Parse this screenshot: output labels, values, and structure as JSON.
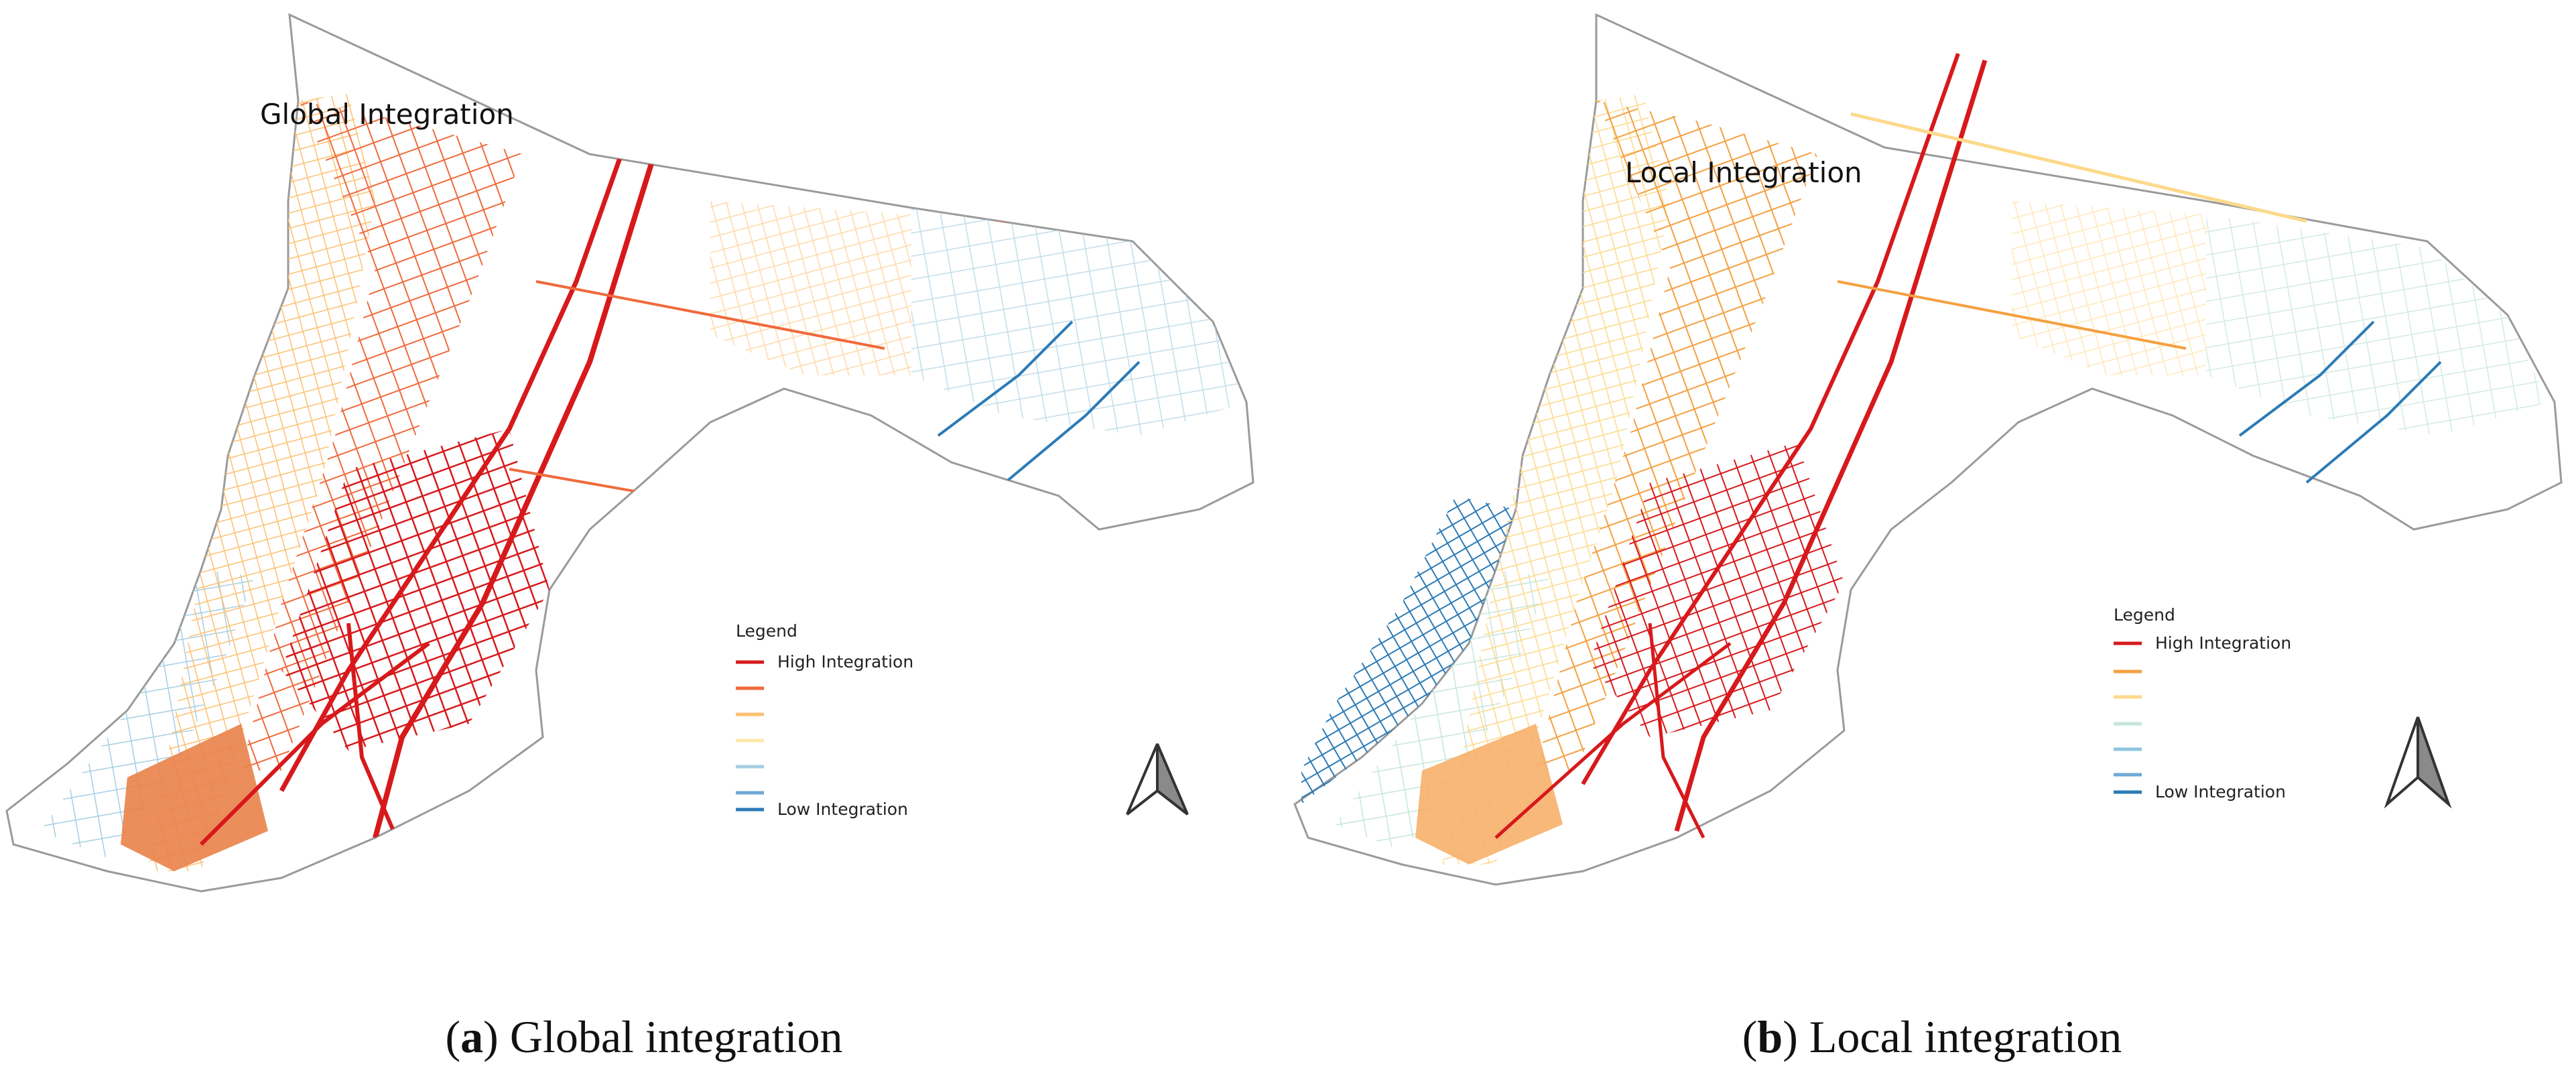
{
  "panels": [
    {
      "map_title": "Global Integration",
      "caption_letter": "a",
      "caption_text": "Global integration",
      "legend": {
        "title": "Legend",
        "high_label": "High Integration",
        "low_label": "Low Integration",
        "colors": [
          "#d7191c",
          "#ef6a3c",
          "#fdbf6f",
          "#fee8a8",
          "#a6cee3",
          "#6ea8d6",
          "#2c7bb6"
        ]
      }
    },
    {
      "map_title": "Local Integration",
      "caption_letter": "b",
      "caption_text": "Local integration",
      "legend": {
        "title": "Legend",
        "high_label": "High Integration",
        "low_label": "Low Integration",
        "colors": [
          "#d7191c",
          "#f4a040",
          "#fdd98a",
          "#c5e6dc",
          "#8fc4e0",
          "#6ea8d6",
          "#2c7bb6"
        ]
      }
    }
  ],
  "icons": {
    "north_arrow": "north-arrow-icon"
  }
}
